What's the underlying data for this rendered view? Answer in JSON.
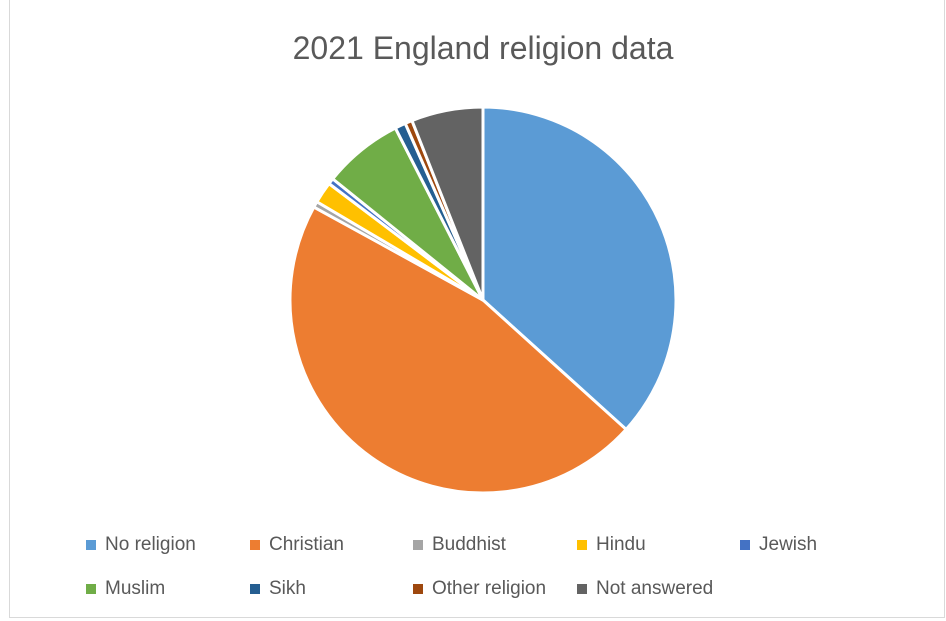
{
  "chart_data": {
    "type": "pie",
    "title": "2021 England religion data",
    "categories": [
      "No religion",
      "Christian",
      "Buddhist",
      "Hindu",
      "Jewish",
      "Muslim",
      "Sikh",
      "Other religion",
      "Not answered"
    ],
    "values": [
      36.7,
      46.3,
      0.5,
      1.8,
      0.5,
      6.7,
      0.9,
      0.6,
      6.0
    ],
    "colors": [
      "#5b9bd5",
      "#ed7d31",
      "#a5a5a5",
      "#ffc000",
      "#4472c4",
      "#70ad47",
      "#255e91",
      "#9e480e",
      "#636363"
    ],
    "start_angle_deg": 0,
    "direction": "clockwise",
    "legend_position": "bottom"
  }
}
